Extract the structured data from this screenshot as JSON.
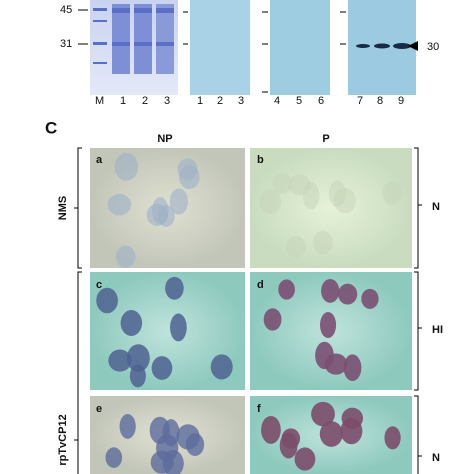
{
  "blot": {
    "markers": [
      "45",
      "31"
    ],
    "lanes_gel": [
      "M",
      "1",
      "2",
      "3"
    ],
    "lanes_blot1": [
      "1",
      "2",
      "3"
    ],
    "lanes_blot2": [
      "4",
      "5",
      "6"
    ],
    "lanes_blot3": [
      "7",
      "8",
      "9"
    ],
    "band_label": "30"
  },
  "panel_c": {
    "label": "C",
    "columns": [
      "NP",
      "P"
    ],
    "images": [
      "a",
      "b",
      "c",
      "d",
      "e",
      "f"
    ],
    "rows": [
      "NMS",
      "rpTvCP12"
    ],
    "right_labels": [
      "N",
      "HI",
      "N"
    ]
  }
}
